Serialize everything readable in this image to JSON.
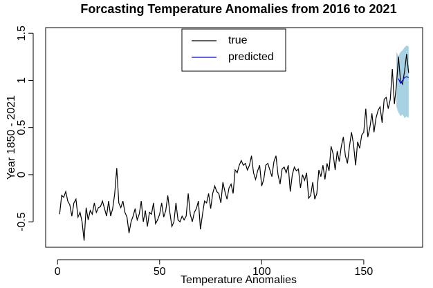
{
  "chart_data": {
    "type": "line",
    "title": "Forcasting Temperature Anomalies from 2016 to 2021",
    "x_label": "Temperature Anomalies",
    "y_label": "Year 1850 - 2021",
    "xlim": [
      -5.84,
      178.84
    ],
    "xticks": [
      0,
      50,
      100,
      150
    ],
    "ylim": [
      -0.77,
      1.56
    ],
    "yticks": [
      -0.5,
      0.0,
      0.5,
      1.0,
      1.5
    ],
    "band": {
      "color": "#a6d2e3",
      "x": [
        166,
        167,
        168,
        169,
        170,
        171,
        172
      ],
      "lower": [
        0.72,
        0.66,
        0.62,
        0.64,
        0.6,
        0.62,
        0.6
      ],
      "upper": [
        1.3,
        1.26,
        1.3,
        1.32,
        1.35,
        1.37,
        1.36
      ]
    },
    "series": [
      {
        "name": "true",
        "color": "#000000",
        "x": [
          1,
          2,
          3,
          4,
          5,
          6,
          7,
          8,
          9,
          10,
          11,
          12,
          13,
          14,
          15,
          16,
          17,
          18,
          19,
          20,
          21,
          22,
          23,
          24,
          25,
          26,
          27,
          28,
          29,
          30,
          31,
          32,
          33,
          34,
          35,
          36,
          37,
          38,
          39,
          40,
          41,
          42,
          43,
          44,
          45,
          46,
          47,
          48,
          49,
          50,
          51,
          52,
          53,
          54,
          55,
          56,
          57,
          58,
          59,
          60,
          61,
          62,
          63,
          64,
          65,
          66,
          67,
          68,
          69,
          70,
          71,
          72,
          73,
          74,
          75,
          76,
          77,
          78,
          79,
          80,
          81,
          82,
          83,
          84,
          85,
          86,
          87,
          88,
          89,
          90,
          91,
          92,
          93,
          94,
          95,
          96,
          97,
          98,
          99,
          100,
          101,
          102,
          103,
          104,
          105,
          106,
          107,
          108,
          109,
          110,
          111,
          112,
          113,
          114,
          115,
          116,
          117,
          118,
          119,
          120,
          121,
          122,
          123,
          124,
          125,
          126,
          127,
          128,
          129,
          130,
          131,
          132,
          133,
          134,
          135,
          136,
          137,
          138,
          139,
          140,
          141,
          142,
          143,
          144,
          145,
          146,
          147,
          148,
          149,
          150,
          151,
          152,
          153,
          154,
          155,
          156,
          157,
          158,
          159,
          160,
          161,
          162,
          163,
          164,
          165,
          166,
          167,
          168,
          169,
          170,
          171,
          172
        ],
        "values": [
          -0.42,
          -0.22,
          -0.24,
          -0.18,
          -0.28,
          -0.32,
          -0.44,
          -0.3,
          -0.26,
          -0.45,
          -0.4,
          -0.5,
          -0.7,
          -0.35,
          -0.48,
          -0.38,
          -0.42,
          -0.3,
          -0.4,
          -0.35,
          -0.34,
          -0.28,
          -0.36,
          -0.44,
          -0.28,
          -0.44,
          -0.36,
          -0.2,
          0.07,
          -0.3,
          -0.35,
          -0.28,
          -0.4,
          -0.45,
          -0.62,
          -0.5,
          -0.44,
          -0.36,
          -0.48,
          -0.42,
          -0.28,
          -0.5,
          -0.38,
          -0.55,
          -0.4,
          -0.42,
          -0.3,
          -0.52,
          -0.48,
          -0.42,
          -0.3,
          -0.45,
          -0.38,
          -0.22,
          -0.4,
          -0.55,
          -0.5,
          -0.3,
          -0.48,
          -0.5,
          -0.44,
          -0.48,
          -0.44,
          -0.2,
          -0.42,
          -0.5,
          -0.4,
          -0.36,
          -0.28,
          -0.58,
          -0.42,
          -0.28,
          -0.3,
          -0.2,
          -0.36,
          -0.2,
          -0.12,
          -0.18,
          -0.2,
          -0.3,
          -0.08,
          -0.18,
          -0.26,
          -0.14,
          -0.1,
          -0.2,
          0.05,
          0.02,
          0.1,
          0.15,
          0.1,
          0.12,
          0.05,
          0.1,
          0.2,
          0.02,
          -0.05,
          0.04,
          0.1,
          -0.12,
          -0.05,
          0.1,
          0.12,
          0.05,
          -0.02,
          0.14,
          0.2,
          0.0,
          -0.1,
          0.06,
          0.08,
          0.02,
          0.1,
          -0.18,
          0.0,
          0.08,
          0.04,
          0.06,
          -0.14,
          0.0,
          -0.06,
          0.02,
          -0.25,
          -0.22,
          -0.08,
          -0.26,
          -0.2,
          0.05,
          -0.02,
          0.1,
          -0.05,
          0.12,
          0.04,
          0.3,
          0.22,
          0.05,
          0.25,
          0.14,
          0.3,
          0.4,
          0.2,
          0.12,
          0.3,
          0.45,
          0.32,
          0.1,
          0.35,
          0.28,
          0.42,
          0.45,
          0.7,
          0.4,
          0.5,
          0.65,
          0.45,
          0.6,
          0.68,
          0.72,
          0.55,
          0.8,
          0.82,
          0.7,
          0.8,
          1.12,
          0.75,
          0.95,
          1.25,
          1.0,
          0.96,
          1.1,
          1.28,
          1.08
        ]
      },
      {
        "name": "predicted",
        "color": "#0000ff",
        "x": [
          167,
          168,
          169,
          170,
          171,
          172
        ],
        "values": [
          1.02,
          0.97,
          1.0,
          1.03,
          1.04,
          1.03
        ]
      }
    ]
  }
}
